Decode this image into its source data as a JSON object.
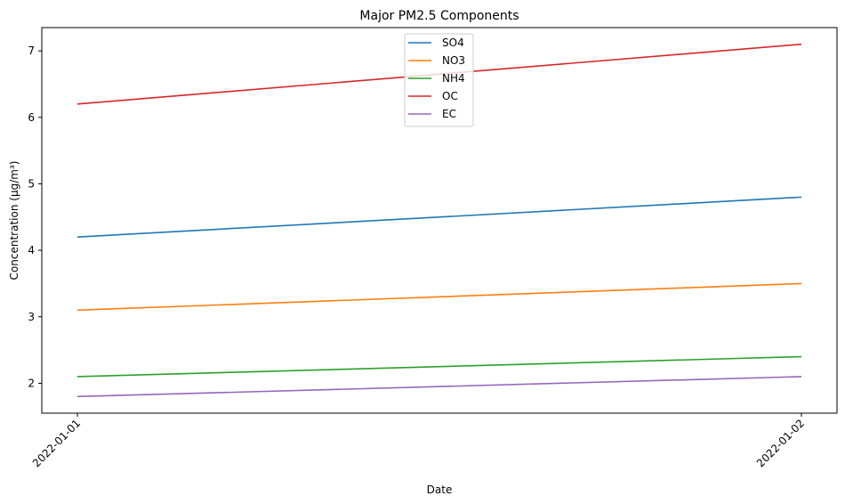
{
  "chart_data": {
    "type": "line",
    "title": "Major PM2.5 Components",
    "xlabel": "Date",
    "ylabel": "Concentration (µg/m³)",
    "x": [
      "2022-01-01",
      "2022-01-02"
    ],
    "ylim": [
      1.55,
      7.35
    ],
    "yticks": [
      2,
      3,
      4,
      5,
      6,
      7
    ],
    "grid": false,
    "legend_position": "top-center",
    "series": [
      {
        "name": "SO4",
        "values": [
          4.2,
          4.8
        ],
        "color": "#1f77b4"
      },
      {
        "name": "NO3",
        "values": [
          3.1,
          3.5
        ],
        "color": "#ff7f0e"
      },
      {
        "name": "NH4",
        "values": [
          2.1,
          2.4
        ],
        "color": "#2ca02c"
      },
      {
        "name": "OC",
        "values": [
          6.2,
          7.1
        ],
        "color": "#d62728"
      },
      {
        "name": "EC",
        "values": [
          1.8,
          2.1
        ],
        "color": "#9467bd"
      }
    ]
  }
}
